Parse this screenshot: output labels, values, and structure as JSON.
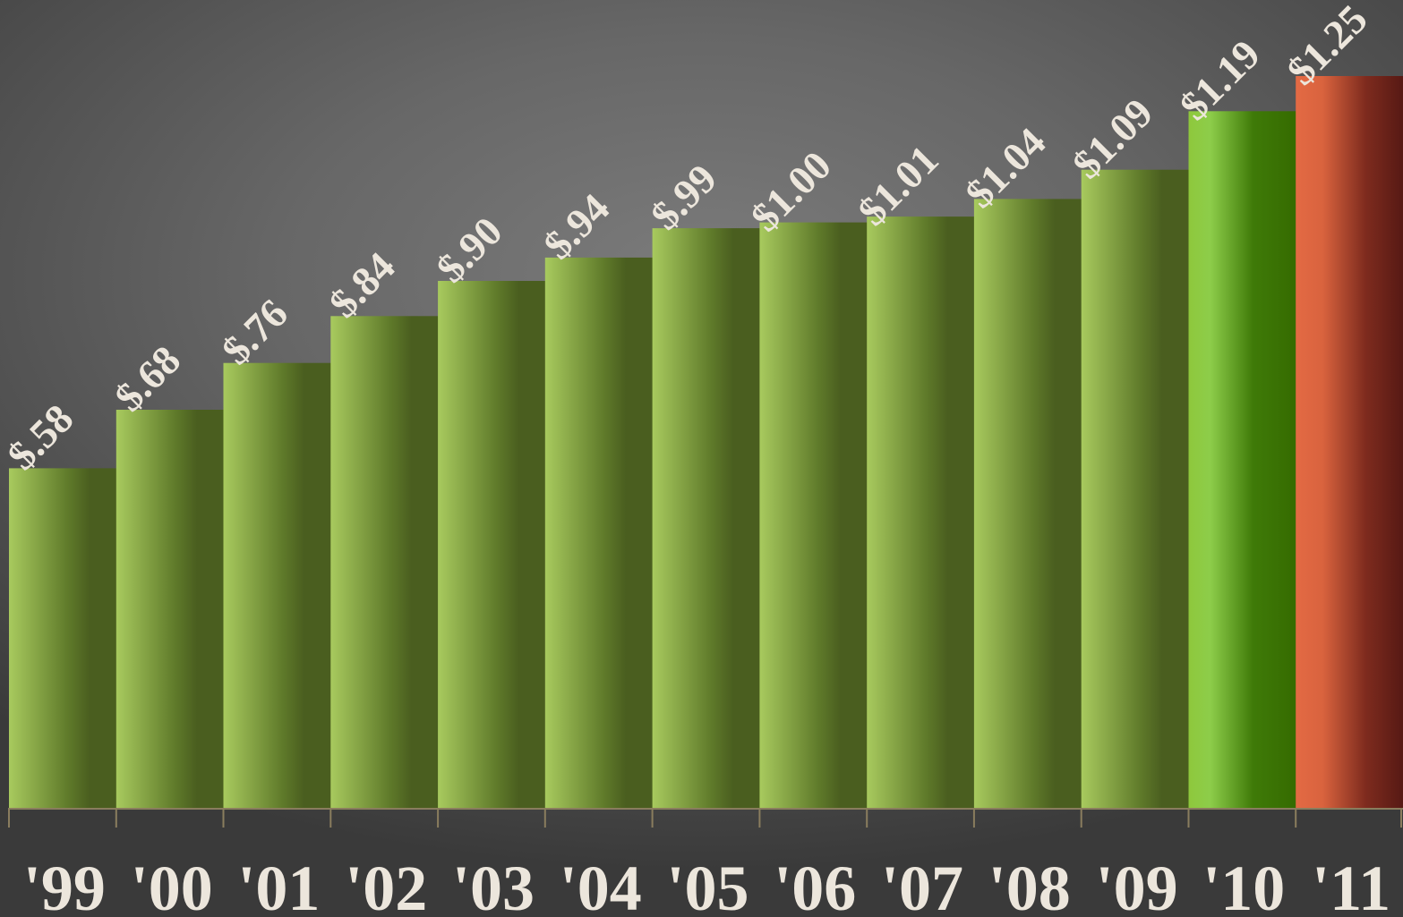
{
  "chart_data": {
    "type": "bar",
    "categories": [
      "'99",
      "'00",
      "'01",
      "'02",
      "'03",
      "'04",
      "'05",
      "'06",
      "'07",
      "'08",
      "'09",
      "'10",
      "'11"
    ],
    "values": [
      0.58,
      0.68,
      0.76,
      0.84,
      0.9,
      0.94,
      0.99,
      1.0,
      1.01,
      1.04,
      1.09,
      1.19,
      1.25
    ],
    "value_labels": [
      "$.58",
      "$.68",
      "$.76",
      "$.84",
      "$.90",
      "$.94",
      "$.99",
      "$1.00",
      "$1.01",
      "$1.04",
      "$1.09",
      "$1.19",
      "$1.25"
    ],
    "title": "",
    "xlabel": "",
    "ylabel": "",
    "ylim": [
      0,
      1.37
    ],
    "grid": false,
    "legend": "none",
    "colors": {
      "default_bar": {
        "light": "#a8ca5e",
        "dark": "#4a5e1f"
      },
      "highlight_bar": {
        "light": "#8ec83c",
        "dark": "#356b00"
      },
      "accent_bar": {
        "light": "#e36a44",
        "dark": "#561914"
      },
      "label_text": "#ece6dc",
      "axis_line": "#8a7d5e"
    },
    "bar_styles": [
      "default",
      "default",
      "default",
      "default",
      "default",
      "default",
      "default",
      "default",
      "default",
      "default",
      "default",
      "highlight",
      "accent"
    ]
  }
}
